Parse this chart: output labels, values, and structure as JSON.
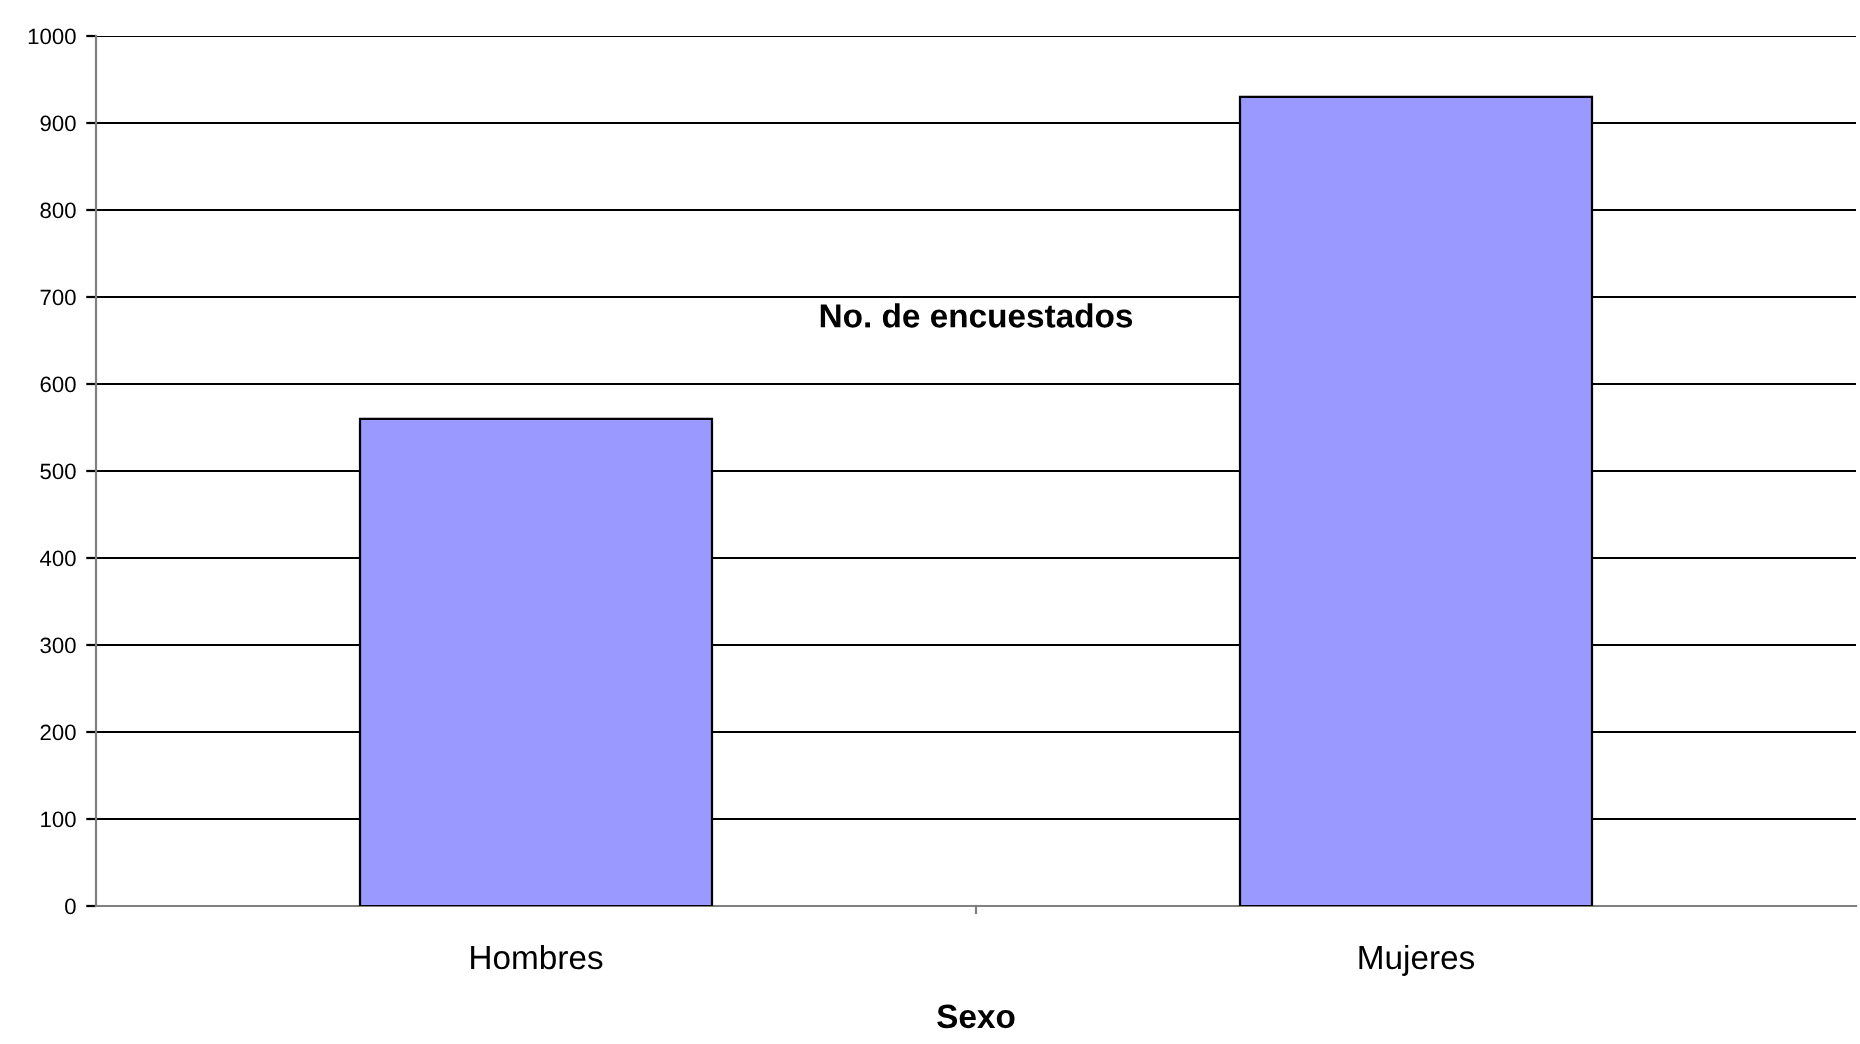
{
  "chart_data": {
    "type": "bar",
    "title": "No. de encuestados",
    "xlabel": "Sexo",
    "categories": [
      "Hombres",
      "Mujeres"
    ],
    "values": [
      560,
      930
    ],
    "color": "#9999ff",
    "ylim": [
      0,
      1000
    ],
    "yticks": [
      0,
      100,
      200,
      300,
      400,
      500,
      600,
      700,
      800,
      900,
      1000
    ],
    "grid": "y"
  }
}
